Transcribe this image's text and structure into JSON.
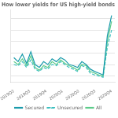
{
  "chart_data": {
    "type": "line",
    "title": "How lower yields for US high-yield bonds",
    "x": [
      0,
      0.2608695652173913,
      0.5217391304347826,
      0.782608695652174,
      1.0434782608695652,
      1.3043478260869565,
      1.565217391304348,
      1.826086956521739,
      2.0869565217391304,
      2.347826086956522,
      2.608695652173913,
      2.869565217391304,
      3.130434782608696,
      3.391304347826087,
      3.6521739130434785,
      3.9130434782608696,
      4.173913043478261,
      4.434782608695652,
      4.695652173913044,
      4.956521739130435,
      5.217391304347826,
      5.478260869565218,
      5.739130434782608,
      6
    ],
    "series": [
      {
        "name": "Secured",
        "color": "#1a9bab",
        "line_style": "solid",
        "values": [
          6.2,
          5.5,
          6.8,
          5.2,
          7.2,
          5.0,
          4.5,
          5.5,
          5.0,
          6.0,
          5.5,
          6.2,
          5.8,
          5.0,
          4.8,
          4.5,
          5.5,
          5.0,
          4.2,
          3.8,
          3.5,
          3.2,
          10.0,
          13.5
        ]
      },
      {
        "name": "Unsecured",
        "color": "#3dbfbf",
        "line_style": "dashed",
        "values": [
          5.0,
          4.8,
          5.5,
          4.5,
          5.8,
          4.2,
          3.8,
          4.5,
          4.2,
          5.0,
          4.8,
          5.5,
          5.0,
          4.5,
          4.2,
          3.8,
          4.8,
          4.5,
          3.5,
          3.2,
          3.0,
          2.8,
          8.0,
          11.0
        ]
      },
      {
        "name": "All",
        "color": "#5dcc8a",
        "line_style": "solid",
        "values": [
          5.5,
          5.0,
          6.0,
          4.8,
          6.5,
          4.5,
          4.0,
          4.8,
          4.5,
          5.5,
          5.0,
          5.8,
          5.2,
          4.8,
          4.5,
          4.0,
          5.0,
          4.8,
          3.8,
          3.5,
          3.2,
          3.0,
          9.0,
          12.5
        ]
      }
    ],
    "xlim": [
      -0.2,
      6.2
    ],
    "xticks": [
      {
        "value": 0,
        "label": "2019Q2"
      },
      {
        "value": 1,
        "label": "2019Q3"
      },
      {
        "value": 2,
        "label": "2019Q4"
      },
      {
        "value": 3,
        "label": "2020Q1"
      },
      {
        "value": 4,
        "label": "2020Q2"
      },
      {
        "value": 5,
        "label": "2020Q3"
      },
      {
        "value": 6,
        "label": "2020Q4"
      }
    ],
    "ylim": [
      2.0,
      14.5
    ],
    "yticks": [
      3,
      5,
      7,
      9,
      11,
      13
    ],
    "grid": true,
    "tick_labels": "x",
    "legend": "bottom"
  }
}
